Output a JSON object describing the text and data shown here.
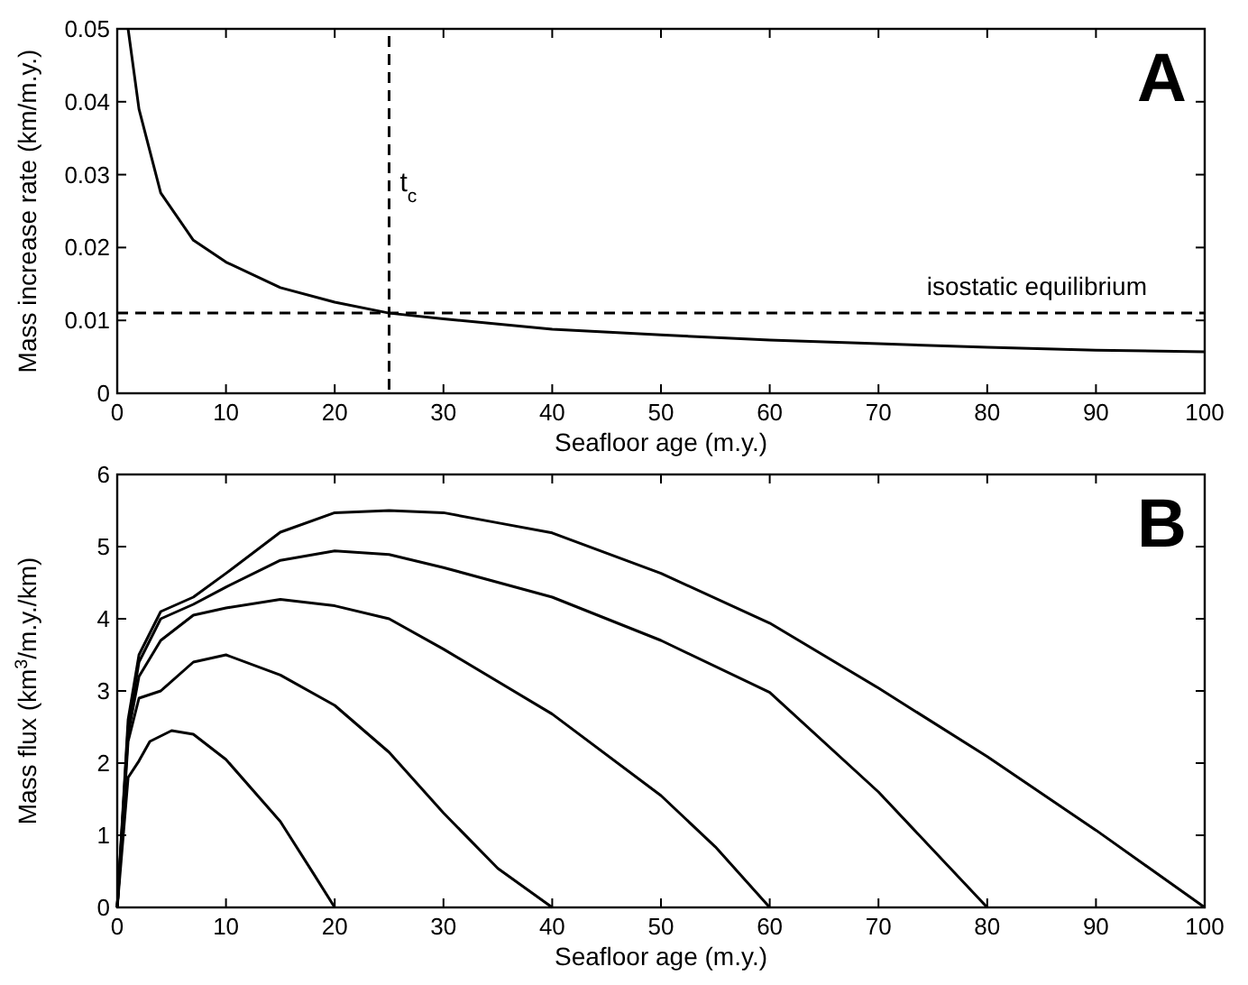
{
  "chart_data": [
    {
      "type": "line",
      "xlabel": "Seafloor age (m.y.)",
      "ylabel": "Mass increase rate (km/m.y.)",
      "annotations": [
        "A"
      ],
      "xlim": [
        0,
        100
      ],
      "ylim": [
        0,
        0.05
      ],
      "xticks": [
        0,
        10,
        20,
        30,
        40,
        50,
        60,
        70,
        80,
        90,
        100
      ],
      "yticks": [
        0,
        0.01,
        0.02,
        0.03,
        0.04,
        0.05
      ],
      "grid": false,
      "marker": "none",
      "line_style": "solid",
      "series": [
        {
          "color": "#000000",
          "x": [
            1,
            2,
            4,
            7,
            10,
            15,
            20,
            25,
            30,
            40,
            50,
            60,
            70,
            80,
            90,
            100
          ],
          "values": [
            0.05,
            0.039,
            0.0275,
            0.021,
            0.018,
            0.0145,
            0.0125,
            0.011,
            0.0102,
            0.0088,
            0.008,
            0.0073,
            0.0068,
            0.0063,
            0.0059,
            0.0057
          ]
        }
      ],
      "ref_lines": [
        {
          "axis": "x",
          "value": 25,
          "label": "t$_{c}$",
          "color": "#000000",
          "line_style": "dashed"
        },
        {
          "axis": "y",
          "value": 0.011,
          "label": "isostatic equilibrium",
          "color": "#000000",
          "line_style": "dashed"
        }
      ]
    },
    {
      "type": "line",
      "xlabel": "Seafloor age (m.y.)",
      "ylabel": "Mass flux (km$^{3}$/m.y./km)",
      "annotations": [
        "B"
      ],
      "xlim": [
        0,
        100
      ],
      "ylim": [
        0,
        6
      ],
      "xticks": [
        0,
        10,
        20,
        30,
        40,
        50,
        60,
        70,
        80,
        90,
        100
      ],
      "yticks": [
        0,
        1,
        2,
        3,
        4,
        5,
        6
      ],
      "grid": false,
      "marker": "none",
      "line_style": "solid",
      "series": [
        {
          "color": "#000000",
          "x": [
            0,
            1,
            2,
            3,
            5,
            7,
            10,
            15,
            18,
            20
          ],
          "values": [
            0,
            1.8,
            2.03,
            2.3,
            2.45,
            2.4,
            2.05,
            1.19,
            0.48,
            0
          ]
        },
        {
          "color": "#000000",
          "x": [
            0,
            1,
            2,
            4,
            7,
            10,
            15,
            20,
            25,
            30,
            35,
            40
          ],
          "values": [
            0,
            2.3,
            2.9,
            3.0,
            3.4,
            3.5,
            3.22,
            2.8,
            2.15,
            1.31,
            0.54,
            0
          ]
        },
        {
          "color": "#000000",
          "x": [
            0,
            1,
            2,
            4,
            7,
            10,
            15,
            20,
            25,
            30,
            40,
            50,
            55,
            60
          ],
          "values": [
            0,
            2.4,
            3.2,
            3.7,
            4.05,
            4.15,
            4.27,
            4.18,
            4.0,
            3.58,
            2.68,
            1.55,
            0.84,
            0
          ]
        },
        {
          "color": "#000000",
          "x": [
            0,
            1,
            2,
            4,
            7,
            10,
            15,
            20,
            25,
            30,
            40,
            50,
            60,
            70,
            80
          ],
          "values": [
            0,
            2.5,
            3.4,
            4.0,
            4.2,
            4.44,
            4.81,
            4.94,
            4.89,
            4.71,
            4.3,
            3.7,
            2.98,
            1.6,
            0
          ]
        },
        {
          "color": "#000000",
          "x": [
            0,
            1,
            2,
            4,
            7,
            10,
            15,
            20,
            25,
            30,
            35,
            40,
            50,
            60,
            70,
            80,
            90,
            100
          ],
          "values": [
            0,
            2.6,
            3.5,
            4.1,
            4.3,
            4.63,
            5.2,
            5.47,
            5.5,
            5.47,
            5.33,
            5.19,
            4.63,
            3.94,
            3.04,
            2.09,
            1.07,
            0
          ]
        }
      ]
    }
  ]
}
